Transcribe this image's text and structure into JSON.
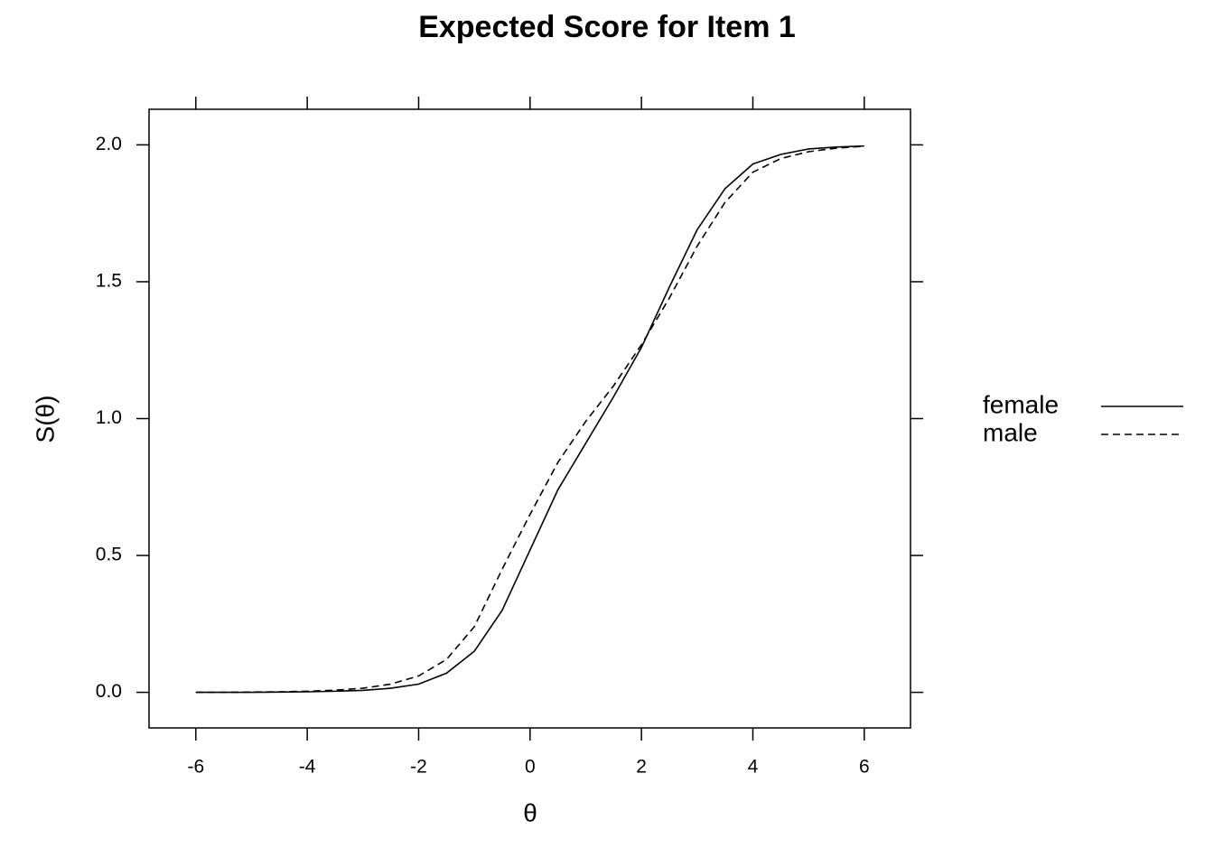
{
  "chart_data": {
    "type": "line",
    "title": "Expected Score for Item 1",
    "x_label": "θ",
    "y_label": "S(θ)",
    "x": [
      -6,
      -5.5,
      -5,
      -4.5,
      -4,
      -3.5,
      -3,
      -2.5,
      -2,
      -1.5,
      -1,
      -0.5,
      0,
      0.5,
      1,
      1.5,
      2,
      2.5,
      3,
      3.5,
      4,
      4.5,
      5,
      5.5,
      6
    ],
    "series": [
      {
        "name": "female",
        "color": "#000000",
        "linestyle": "solid",
        "values": [
          0,
          0,
          0,
          0.001,
          0.002,
          0.004,
          0.007,
          0.015,
          0.03,
          0.07,
          0.15,
          0.3,
          0.52,
          0.74,
          0.91,
          1.08,
          1.26,
          1.48,
          1.69,
          1.84,
          1.93,
          1.965,
          1.985,
          1.992,
          1.996
        ]
      },
      {
        "name": "male",
        "color": "#000000",
        "linestyle": "dashed",
        "values": [
          0,
          0,
          0.001,
          0.002,
          0.004,
          0.008,
          0.015,
          0.03,
          0.06,
          0.12,
          0.24,
          0.45,
          0.65,
          0.84,
          0.99,
          1.12,
          1.27,
          1.44,
          1.63,
          1.79,
          1.9,
          1.95,
          1.975,
          1.988,
          1.995
        ]
      }
    ],
    "xlim": [
      -6.84,
      6.83
    ],
    "ylim": [
      -0.13,
      2.13
    ],
    "xticks": [
      -6,
      -4,
      -2,
      0,
      2,
      4,
      6
    ],
    "yticks": [
      {
        "value": 0,
        "label": "0.0"
      },
      {
        "value": 0.5,
        "label": "0.5"
      },
      {
        "value": 1,
        "label": "1.0"
      },
      {
        "value": 1.5,
        "label": "1.5"
      },
      {
        "value": 2,
        "label": "2.0"
      }
    ],
    "legend": "right"
  }
}
